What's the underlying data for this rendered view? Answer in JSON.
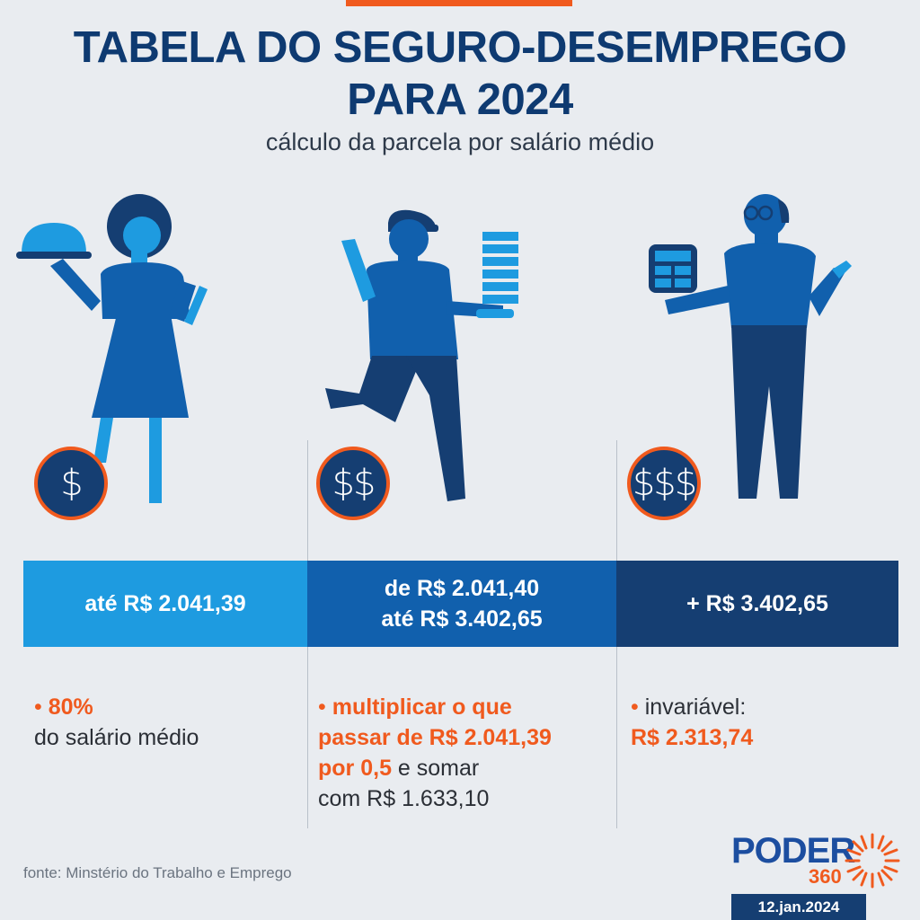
{
  "header": {
    "title_line1": "TABELA DO SEGURO-DESEMPREGO",
    "title_line2": "PARA 2024",
    "subtitle": "cálculo da parcela por salário médio"
  },
  "tiers": [
    {
      "coin_symbol": "$",
      "band_label": "até R$ 2.041,39",
      "band_color": "#1e9be0",
      "bullet": "•",
      "note_highlight": "80%",
      "note_text": "do salário médio"
    },
    {
      "coin_symbol": "$$",
      "band_line1": "de R$ 2.041,40",
      "band_line2": "até R$ 3.402,65",
      "band_color": "#1160ad",
      "bullet": "•",
      "note_highlight_line1": "multiplicar o que",
      "note_highlight_line2": "passar de R$ 2.041,39",
      "note_highlight_line3": "por 0,5",
      "note_text_line3": " e somar",
      "note_text_line4": "com R$ 1.633,10"
    },
    {
      "coin_symbol": "$$$",
      "band_label": "+ R$ 3.402,65",
      "band_color": "#153e72",
      "bullet": "•",
      "note_text": " invariável:",
      "note_highlight": "R$ 2.313,74"
    }
  ],
  "footer": {
    "source": "fonte: Minstério do Trabalho e Emprego",
    "logo_name": "PODER",
    "logo_number": "360",
    "date": "12.jan.2024"
  },
  "colors": {
    "accent_orange": "#f05a1e",
    "navy": "#153e72",
    "light_blue": "#1e9be0",
    "mid_blue": "#1160ad"
  },
  "icons": [
    "waitress-figure",
    "courier-figure",
    "elderly-man-figure",
    "dollar-coin-icon",
    "poder360-sun-icon"
  ]
}
